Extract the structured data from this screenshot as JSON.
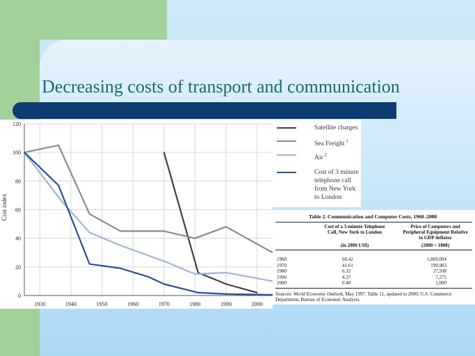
{
  "title": "Decreasing costs of transport and communication",
  "chart_data": {
    "type": "line",
    "ylabel": "Cost index",
    "xlabel": "",
    "xlim": [
      1925,
      2005
    ],
    "ylim": [
      0,
      120
    ],
    "x_ticks": [
      "1930",
      "1940",
      "1950",
      "1960",
      "1970",
      "1980",
      "1990",
      "2000"
    ],
    "y_ticks": [
      "0",
      "20",
      "40",
      "60",
      "80",
      "100",
      "120"
    ],
    "grid": true,
    "series": [
      {
        "name": "Satellite charges",
        "color": "#404040",
        "points": [
          [
            1970,
            100
          ],
          [
            1981,
            16
          ],
          [
            1990,
            8
          ],
          [
            2000,
            2
          ]
        ]
      },
      {
        "name": "Sea Freight",
        "color": "#8a8a8a",
        "points": [
          [
            1925,
            100
          ],
          [
            1936,
            105
          ],
          [
            1946,
            57
          ],
          [
            1956,
            45
          ],
          [
            1970,
            45
          ],
          [
            1980,
            40
          ],
          [
            1990,
            48
          ],
          [
            2005,
            30
          ]
        ]
      },
      {
        "name": "Air",
        "color": "#9fb4d6",
        "points": [
          [
            1925,
            100
          ],
          [
            1937,
            66
          ],
          [
            1946,
            44
          ],
          [
            1956,
            35
          ],
          [
            1970,
            24
          ],
          [
            1980,
            15
          ],
          [
            1990,
            16
          ],
          [
            2000,
            12
          ],
          [
            2005,
            10
          ]
        ]
      },
      {
        "name": "Cost of 3 minute telephone call from New York to London",
        "color": "#2b4d9a",
        "points": [
          [
            1925,
            100
          ],
          [
            1936,
            77
          ],
          [
            1946,
            22
          ],
          [
            1956,
            19
          ],
          [
            1965,
            13
          ],
          [
            1970,
            8
          ],
          [
            1981,
            2
          ],
          [
            1990,
            1
          ],
          [
            2005,
            0.5
          ]
        ]
      }
    ],
    "legend": [
      {
        "label": "Satellite charges",
        "sup": "",
        "color": "#404040"
      },
      {
        "label": "Sea Freight",
        "sup": "1",
        "color": "#8a8a8a"
      },
      {
        "label": "Air",
        "sup": "2",
        "color": "#9fb4d6"
      },
      {
        "label": "Cost of 3 minute telephone call from New York to London",
        "sup": "",
        "color": "#2b4d9a"
      }
    ]
  },
  "table": {
    "title": "Table 2.  Communication and Computer Costs, 1960–2000",
    "col1_header": "Cost of a 3-minute Telephone Call, New York to London",
    "col1_unit": "(in 2000 US$)",
    "col2_header": "Price of Computers and Peripheral Equipment Relative to GDP deflator",
    "col2_unit": "(2000 = 1000)",
    "rows": [
      {
        "year": "1960",
        "call": "60.42",
        "computers": "1,869,004"
      },
      {
        "year": "1970",
        "call": "41.61",
        "computers": "199,983"
      },
      {
        "year": "1980",
        "call": "6.32",
        "computers": "27,938"
      },
      {
        "year": "1990",
        "call": "4.37",
        "computers": "7,275"
      },
      {
        "year": "2000",
        "call": "0.40",
        "computers": "1,000"
      }
    ],
    "sources_label": "Sources:",
    "sources_italic": "World Economic Outlook,",
    "sources_text": "May 1997, Table 11, updated to 2000; U.S. Commerce Department, Bureau of Economic Analysis."
  }
}
